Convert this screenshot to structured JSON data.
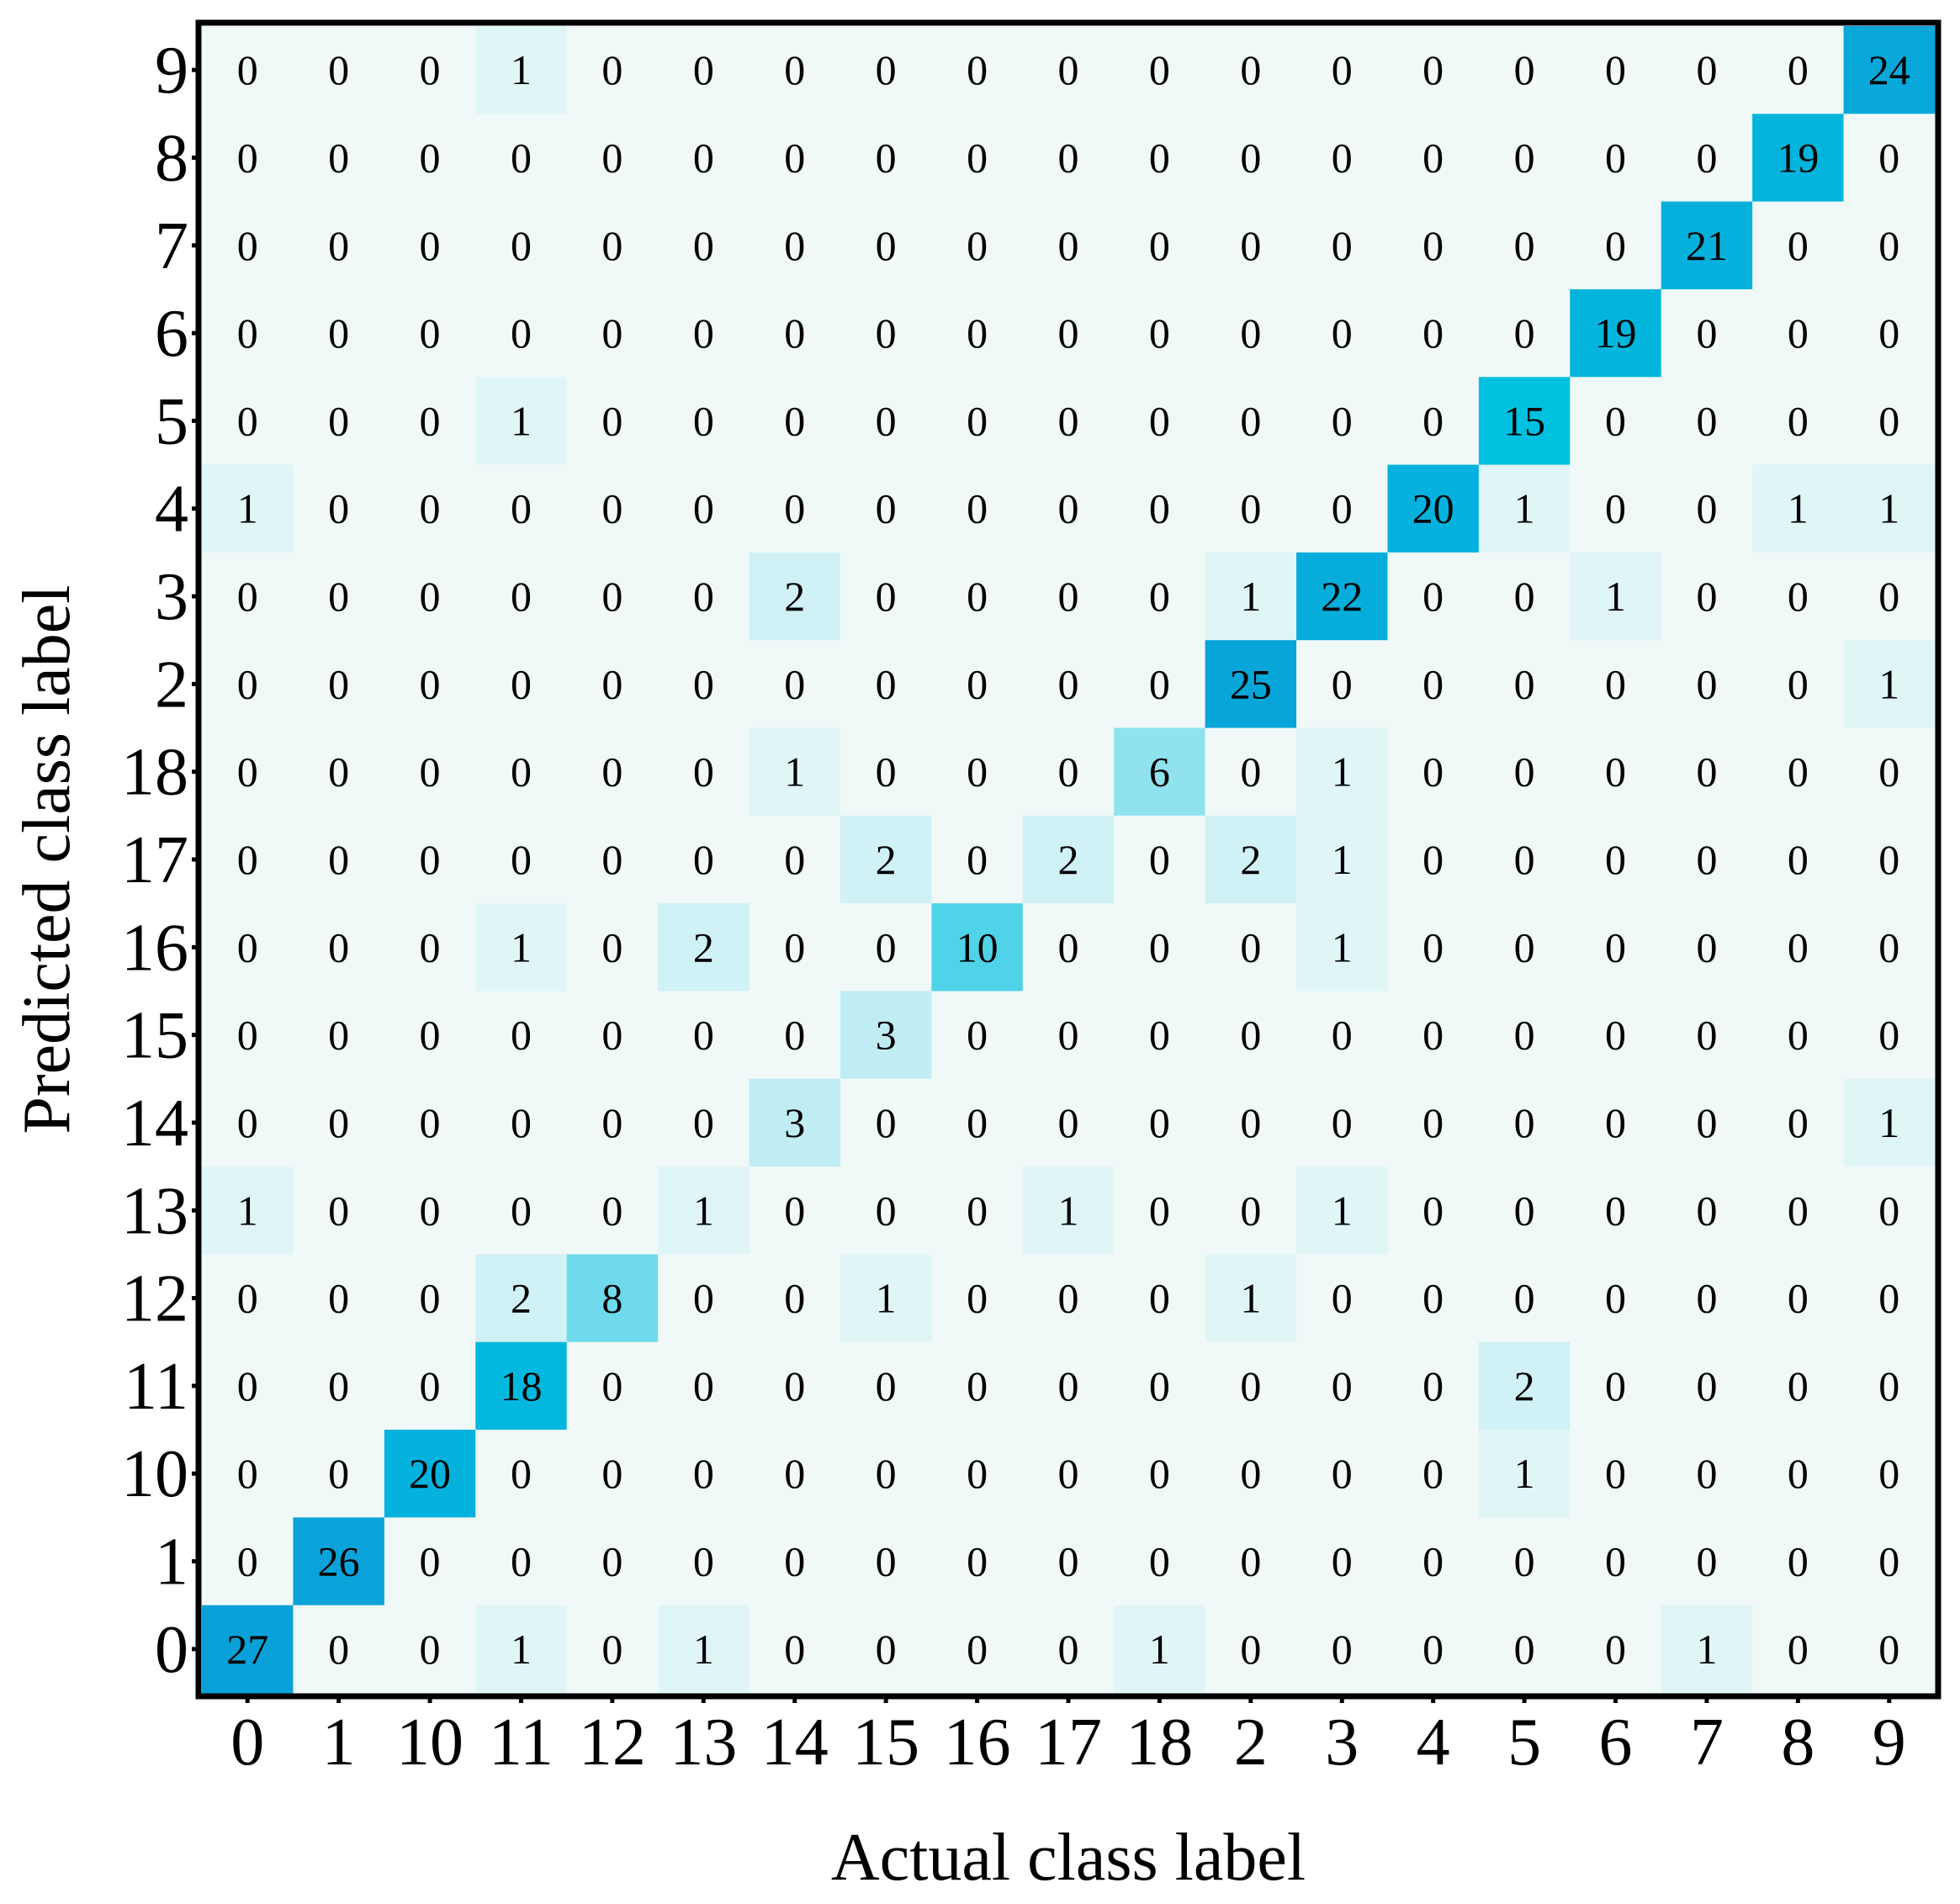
{
  "chart_data": {
    "type": "heatmap",
    "title": "",
    "xlabel": "Actual class label",
    "ylabel": "Predicted class label",
    "x_categories": [
      "0",
      "1",
      "10",
      "11",
      "12",
      "13",
      "14",
      "15",
      "16",
      "17",
      "18",
      "2",
      "3",
      "4",
      "5",
      "6",
      "7",
      "8",
      "9"
    ],
    "y_categories": [
      "9",
      "8",
      "7",
      "6",
      "5",
      "4",
      "3",
      "2",
      "18",
      "17",
      "16",
      "15",
      "14",
      "13",
      "12",
      "11",
      "10",
      "1",
      "0"
    ],
    "values": [
      [
        0,
        0,
        0,
        1,
        0,
        0,
        0,
        0,
        0,
        0,
        0,
        0,
        0,
        0,
        0,
        0,
        0,
        0,
        24
      ],
      [
        0,
        0,
        0,
        0,
        0,
        0,
        0,
        0,
        0,
        0,
        0,
        0,
        0,
        0,
        0,
        0,
        0,
        19,
        0
      ],
      [
        0,
        0,
        0,
        0,
        0,
        0,
        0,
        0,
        0,
        0,
        0,
        0,
        0,
        0,
        0,
        0,
        21,
        0,
        0
      ],
      [
        0,
        0,
        0,
        0,
        0,
        0,
        0,
        0,
        0,
        0,
        0,
        0,
        0,
        0,
        0,
        19,
        0,
        0,
        0
      ],
      [
        0,
        0,
        0,
        1,
        0,
        0,
        0,
        0,
        0,
        0,
        0,
        0,
        0,
        0,
        15,
        0,
        0,
        0,
        0
      ],
      [
        1,
        0,
        0,
        0,
        0,
        0,
        0,
        0,
        0,
        0,
        0,
        0,
        0,
        20,
        1,
        0,
        0,
        1,
        1
      ],
      [
        0,
        0,
        0,
        0,
        0,
        0,
        2,
        0,
        0,
        0,
        0,
        1,
        22,
        0,
        0,
        1,
        0,
        0,
        0
      ],
      [
        0,
        0,
        0,
        0,
        0,
        0,
        0,
        0,
        0,
        0,
        0,
        25,
        0,
        0,
        0,
        0,
        0,
        0,
        1
      ],
      [
        0,
        0,
        0,
        0,
        0,
        0,
        1,
        0,
        0,
        0,
        6,
        0,
        1,
        0,
        0,
        0,
        0,
        0,
        0
      ],
      [
        0,
        0,
        0,
        0,
        0,
        0,
        0,
        2,
        0,
        2,
        0,
        2,
        1,
        0,
        0,
        0,
        0,
        0,
        0
      ],
      [
        0,
        0,
        0,
        1,
        0,
        2,
        0,
        0,
        10,
        0,
        0,
        0,
        1,
        0,
        0,
        0,
        0,
        0,
        0
      ],
      [
        0,
        0,
        0,
        0,
        0,
        0,
        0,
        3,
        0,
        0,
        0,
        0,
        0,
        0,
        0,
        0,
        0,
        0,
        0
      ],
      [
        0,
        0,
        0,
        0,
        0,
        0,
        3,
        0,
        0,
        0,
        0,
        0,
        0,
        0,
        0,
        0,
        0,
        0,
        1
      ],
      [
        1,
        0,
        0,
        0,
        0,
        1,
        0,
        0,
        0,
        1,
        0,
        0,
        1,
        0,
        0,
        0,
        0,
        0,
        0
      ],
      [
        0,
        0,
        0,
        2,
        8,
        0,
        0,
        1,
        0,
        0,
        0,
        1,
        0,
        0,
        0,
        0,
        0,
        0,
        0
      ],
      [
        0,
        0,
        0,
        18,
        0,
        0,
        0,
        0,
        0,
        0,
        0,
        0,
        0,
        0,
        2,
        0,
        0,
        0,
        0
      ],
      [
        0,
        0,
        20,
        0,
        0,
        0,
        0,
        0,
        0,
        0,
        0,
        0,
        0,
        0,
        1,
        0,
        0,
        0,
        0
      ],
      [
        0,
        26,
        0,
        0,
        0,
        0,
        0,
        0,
        0,
        0,
        0,
        0,
        0,
        0,
        0,
        0,
        0,
        0,
        0
      ],
      [
        27,
        0,
        0,
        1,
        0,
        1,
        0,
        0,
        0,
        0,
        1,
        0,
        0,
        0,
        0,
        0,
        1,
        0,
        0
      ]
    ],
    "color_scale": {
      "low": "#f0f9f8",
      "mid": "#00c0e0",
      "high": "#0aa0d8",
      "max_value": 27
    },
    "grid": false,
    "legend": "none"
  }
}
